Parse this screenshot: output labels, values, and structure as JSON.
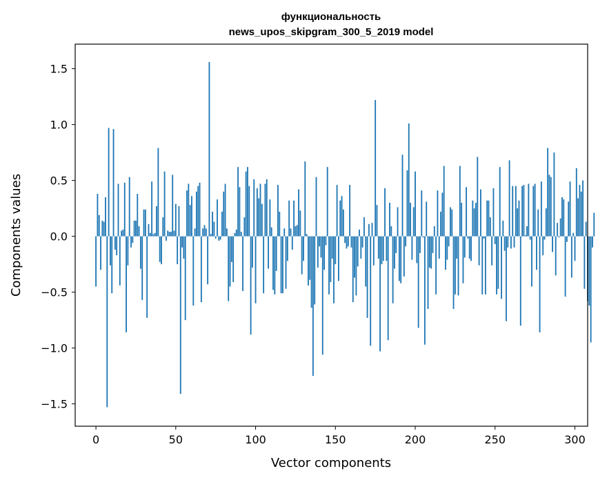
{
  "chart_data": {
    "type": "bar",
    "title": "функциональность\nnews_upos_skipgram_300_5_2019 model",
    "xlabel": "Vector components",
    "ylabel": "Components values",
    "xlim": [
      -13,
      308
    ],
    "ylim": [
      -1.7,
      1.72
    ],
    "xticks": [
      0,
      50,
      100,
      150,
      200,
      250,
      300
    ],
    "yticks": [
      -1.5,
      -1.0,
      -0.5,
      0.0,
      0.5,
      1.0,
      1.5
    ],
    "ytick_labels": [
      "−1.5",
      "−1.0",
      "−0.5",
      "0.0",
      "0.5",
      "1.0",
      "1.5"
    ],
    "bar_color": "#1f77b4",
    "grid": false,
    "values": [
      -0.45,
      0.38,
      0.19,
      -0.3,
      0.14,
      0.13,
      0.35,
      -1.53,
      0.97,
      -0.26,
      -0.51,
      0.96,
      -0.12,
      -0.17,
      0.47,
      -0.44,
      0.05,
      0.06,
      0.48,
      -0.86,
      -0.26,
      0.53,
      -0.1,
      -0.06,
      0.14,
      0.14,
      0.38,
      0.09,
      -0.29,
      -0.57,
      0.24,
      0.24,
      -0.73,
      0.11,
      0.03,
      0.49,
      0.02,
      0.03,
      0.27,
      0.79,
      -0.23,
      -0.25,
      0.17,
      0.58,
      -0.04,
      0.05,
      0.04,
      0.04,
      0.55,
      0.05,
      0.29,
      -0.25,
      0.27,
      -1.41,
      -0.1,
      -0.2,
      -0.75,
      0.41,
      0.47,
      0.28,
      0.36,
      -0.62,
      0.07,
      0.4,
      0.45,
      0.48,
      -0.59,
      0.07,
      0.1,
      0.07,
      -0.43,
      1.56,
      0.02,
      0.22,
      0.13,
      -0.02,
      0.33,
      -0.04,
      -0.03,
      0.22,
      0.4,
      0.47,
      0.07,
      -0.58,
      -0.45,
      -0.23,
      -0.41,
      0.03,
      0.06,
      0.62,
      0.44,
      0.04,
      -0.49,
      0.17,
      0.58,
      0.62,
      0.45,
      -0.88,
      -0.28,
      0.51,
      -0.6,
      0.43,
      0.34,
      0.47,
      0.29,
      -0.51,
      0.47,
      0.51,
      -0.29,
      0.33,
      0.08,
      -0.48,
      -0.52,
      -0.31,
      0.46,
      0.22,
      -0.51,
      -0.51,
      0.07,
      -0.47,
      -0.22,
      0.32,
      0.07,
      -0.12,
      0.32,
      0.09,
      0.1,
      0.42,
      0.23,
      -0.34,
      -0.22,
      0.67,
      0.02,
      -0.44,
      -0.39,
      -0.64,
      -1.25,
      -0.61,
      0.53,
      -0.28,
      -0.09,
      -0.19,
      -1.06,
      -0.3,
      -0.08,
      0.62,
      -0.52,
      -0.41,
      -0.2,
      -0.6,
      -0.25,
      0.46,
      -0.4,
      0.32,
      0.36,
      0.24,
      -0.06,
      -0.11,
      -0.09,
      0.46,
      -0.1,
      -0.59,
      -0.37,
      -0.53,
      -0.27,
      0.06,
      -0.2,
      -0.1,
      0.17,
      -0.45,
      -0.73,
      0.11,
      -0.98,
      0.12,
      -0.26,
      1.22,
      0.28,
      -0.2,
      -1.03,
      -0.25,
      -0.22,
      0.43,
      -0.22,
      -0.93,
      0.3,
      0.09,
      -0.6,
      -0.29,
      -0.15,
      0.26,
      -0.4,
      -0.42,
      0.73,
      -0.36,
      -0.09,
      0.59,
      1.01,
      0.3,
      -0.21,
      0.26,
      0.58,
      -0.24,
      -0.82,
      -0.15,
      0.41,
      -0.01,
      -0.97,
      0.31,
      -0.65,
      -0.28,
      -0.29,
      -0.15,
      0.09,
      -0.52,
      0.41,
      -0.2,
      0.22,
      0.39,
      0.63,
      -0.3,
      -0.21,
      -0.09,
      0.26,
      0.24,
      -0.65,
      -0.52,
      -0.2,
      -0.53,
      0.63,
      0.3,
      -0.42,
      -0.19,
      0.44,
      -0.02,
      -0.2,
      -0.22,
      0.32,
      0.25,
      0.3,
      0.71,
      -0.26,
      0.42,
      -0.52,
      -0.02,
      -0.52,
      0.32,
      0.32,
      0.17,
      -0.26,
      0.43,
      -0.07,
      -0.52,
      -0.47,
      0.62,
      -0.56,
      0.14,
      -0.13,
      -0.76,
      -0.1,
      0.68,
      -0.11,
      0.45,
      -0.1,
      0.45,
      0.25,
      0.32,
      -0.8,
      0.45,
      0.46,
      0.01,
      0.09,
      0.47,
      -0.03,
      -0.45,
      0.45,
      0.47,
      -0.3,
      0.24,
      -0.86,
      0.49,
      -0.17,
      -0.03,
      0.25,
      0.79,
      0.55,
      0.53,
      -0.14,
      0.75,
      -0.35,
      0.12,
      -0.01,
      0.16,
      0.35,
      0.33,
      -0.54,
      -0.05,
      0.31,
      0.49,
      -0.37,
      0.03,
      -0.22,
      0.61,
      0.34,
      0.46,
      0.4,
      0.5,
      -0.47,
      0.13,
      -0.58,
      -0.62,
      -0.95,
      -0.1,
      0.21
    ]
  }
}
